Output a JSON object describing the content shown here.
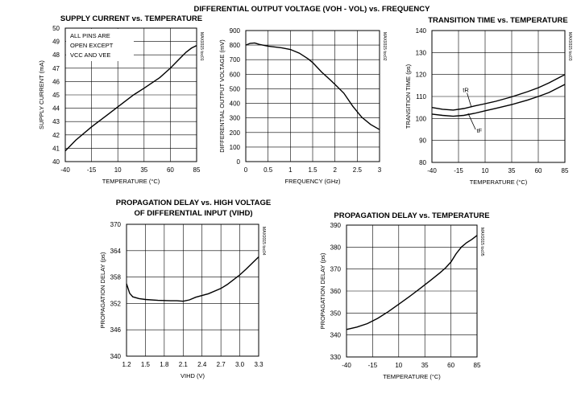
{
  "chart_data": [
    {
      "type": "line",
      "title": "SUPPLY CURRENT vs. TEMPERATURE",
      "xlabel": "TEMPERATURE (°C)",
      "ylabel": "SUPPLY CURRENT (mA)",
      "x_ticks": [
        -40,
        -15,
        10,
        35,
        60,
        85
      ],
      "y_ticks": [
        40,
        41,
        42,
        43,
        44,
        45,
        46,
        47,
        48,
        49,
        50
      ],
      "xlim": [
        -40,
        85
      ],
      "ylim": [
        40,
        50
      ],
      "grid": true,
      "annotation_lines": [
        "ALL PINS ARE",
        "OPEN EXCEPT",
        "VCC AND VEE"
      ],
      "code": "MAX9315 toc01",
      "series": [
        {
          "x": [
            -40,
            -30,
            -15,
            0,
            10,
            25,
            35,
            50,
            60,
            70,
            75,
            80,
            85
          ],
          "y": [
            40.8,
            41.6,
            42.6,
            43.5,
            44.1,
            45.0,
            45.5,
            46.3,
            47.0,
            47.8,
            48.2,
            48.5,
            48.7
          ]
        }
      ]
    },
    {
      "type": "line",
      "title": "DIFFERENTIAL OUTPUT VOLTAGE (VOH - VOL) vs. FREQUENCY",
      "xlabel": "FREQUENCY (GHz)",
      "ylabel": "DIFFERENTIAL OUTPUT VOLTAGE (mV)",
      "x_ticks": [
        0,
        0.5,
        1.0,
        1.5,
        2.0,
        2.5,
        3.0
      ],
      "y_ticks": [
        0,
        100,
        200,
        300,
        400,
        500,
        600,
        700,
        800,
        900
      ],
      "xlim": [
        0,
        3.0
      ],
      "ylim": [
        0,
        900
      ],
      "grid": true,
      "code": "MAX9315 toc02",
      "series": [
        {
          "x": [
            0,
            0.1,
            0.2,
            0.3,
            0.5,
            0.8,
            1.0,
            1.2,
            1.4,
            1.5,
            1.7,
            1.9,
            2.0,
            2.2,
            2.4,
            2.6,
            2.8,
            3.0
          ],
          "y": [
            800,
            812,
            815,
            805,
            793,
            782,
            770,
            745,
            705,
            680,
            615,
            560,
            530,
            470,
            380,
            305,
            255,
            220
          ]
        }
      ]
    },
    {
      "type": "line",
      "title": "TRANSITION TIME vs. TEMPERATURE",
      "xlabel": "TEMPERATURE (°C)",
      "ylabel": "TRANSITION TIME (ps)",
      "x_ticks": [
        -40,
        -15,
        10,
        35,
        60,
        85
      ],
      "y_ticks": [
        80,
        90,
        100,
        110,
        120,
        130,
        140
      ],
      "xlim": [
        -40,
        85
      ],
      "ylim": [
        80,
        140
      ],
      "grid": true,
      "code": "MAX9315 toc03",
      "series": [
        {
          "name": "tR",
          "x": [
            -40,
            -30,
            -20,
            -10,
            0,
            10,
            20,
            35,
            50,
            60,
            70,
            85
          ],
          "y": [
            105,
            104.2,
            103.8,
            104.5,
            105.7,
            106.7,
            107.8,
            109.8,
            112.2,
            114.0,
            116.2,
            120.0
          ]
        },
        {
          "name": "tF",
          "x": [
            -40,
            -30,
            -20,
            -10,
            0,
            10,
            20,
            35,
            50,
            60,
            70,
            85
          ],
          "y": [
            102,
            101.4,
            101.0,
            101.4,
            102.3,
            103.5,
            104.6,
            106.3,
            108.4,
            110.0,
            111.8,
            115.5
          ]
        }
      ]
    },
    {
      "type": "line",
      "title_lines": [
        "PROPAGATION DELAY vs. HIGH VOLTAGE",
        "OF DIFFERENTIAL INPUT (VIHD)"
      ],
      "xlabel": "VIHD (V)",
      "ylabel": "PROPAGATION DELAY (ps)",
      "x_ticks": [
        "1.2",
        "1.5",
        "1.8",
        "2.1",
        "2.4",
        "2.7",
        "3.0",
        "3.3"
      ],
      "y_ticks": [
        340,
        346,
        352,
        358,
        364,
        370
      ],
      "xlim": [
        1.2,
        3.3
      ],
      "ylim": [
        340,
        370
      ],
      "grid": true,
      "code": "MAX9315 toc04",
      "series": [
        {
          "x": [
            1.2,
            1.25,
            1.3,
            1.4,
            1.5,
            1.7,
            1.9,
            2.0,
            2.1,
            2.2,
            2.3,
            2.5,
            2.7,
            2.8,
            2.9,
            3.0,
            3.1,
            3.2,
            3.3
          ],
          "y": [
            356.5,
            354.3,
            353.5,
            353.1,
            352.9,
            352.7,
            352.6,
            352.6,
            352.5,
            352.8,
            353.4,
            354.2,
            355.4,
            356.3,
            357.4,
            358.5,
            359.8,
            361.2,
            362.6
          ]
        }
      ]
    },
    {
      "type": "line",
      "title": "PROPAGATION DELAY vs. TEMPERATURE",
      "xlabel": "TEMPERATURE (°C)",
      "ylabel": "PROPAGATION DELAY (ps)",
      "x_ticks": [
        -40,
        -15,
        10,
        35,
        60,
        85
      ],
      "y_ticks": [
        330,
        340,
        350,
        360,
        370,
        380,
        390
      ],
      "xlim": [
        -40,
        85
      ],
      "ylim": [
        330,
        390
      ],
      "grid": true,
      "code": "MAX9315 toc05",
      "series": [
        {
          "x": [
            -40,
            -30,
            -20,
            -10,
            0,
            10,
            20,
            30,
            40,
            50,
            55,
            60,
            65,
            70,
            75,
            80,
            85
          ],
          "y": [
            342.5,
            343.6,
            345.2,
            347.6,
            350.6,
            354.0,
            357.4,
            361.0,
            364.7,
            368.5,
            370.6,
            373.2,
            377.0,
            380.0,
            382.0,
            383.5,
            385.3
          ]
        }
      ]
    }
  ]
}
